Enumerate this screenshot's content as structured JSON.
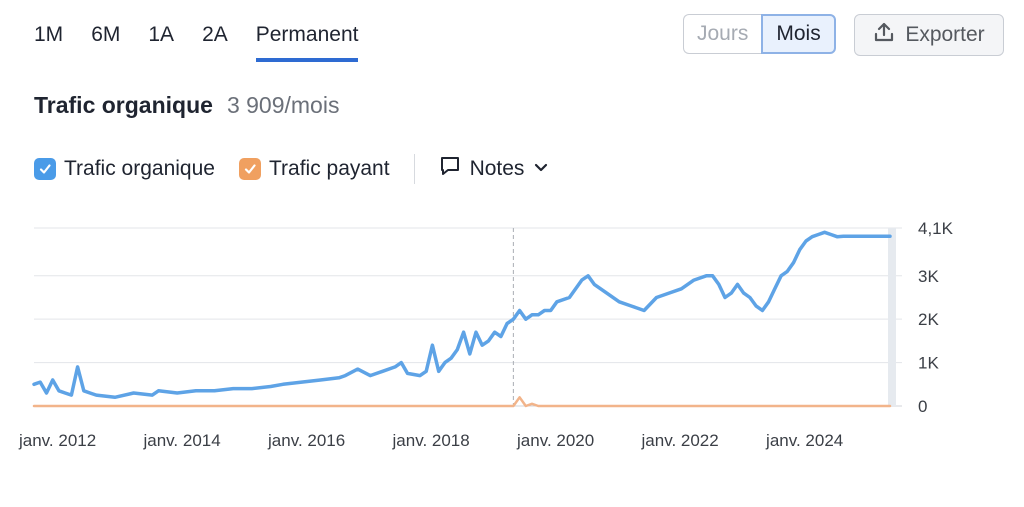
{
  "range_tabs": [
    {
      "label": "1M",
      "active": false
    },
    {
      "label": "6M",
      "active": false
    },
    {
      "label": "1A",
      "active": false
    },
    {
      "label": "2A",
      "active": false
    },
    {
      "label": "Permanent",
      "active": true
    }
  ],
  "period_toggle": {
    "left_label": "Jours",
    "right_label": "Mois",
    "selected": "Mois"
  },
  "export": {
    "label": "Exporter",
    "icon": "upload-icon"
  },
  "headline": {
    "title": "Trafic organique",
    "value": "3 909/mois"
  },
  "legend": {
    "items": [
      {
        "label": "Trafic organique",
        "checked": true,
        "color": "#4a9be8"
      },
      {
        "label": "Trafic payant",
        "checked": true,
        "color": "#f0a060"
      }
    ],
    "notes_label": "Notes"
  },
  "colors": {
    "organic": "#5ea3e6",
    "paid": "#f2b48a",
    "accent": "#2e6bd2"
  },
  "chart_data": {
    "type": "line",
    "title": "",
    "ylim": [
      0,
      4100
    ],
    "y_ticks": [
      {
        "value": 4100,
        "label": "4,1K"
      },
      {
        "value": 3000,
        "label": "3K"
      },
      {
        "value": 2000,
        "label": "2K"
      },
      {
        "value": 1000,
        "label": "1K"
      },
      {
        "value": 0,
        "label": "0"
      }
    ],
    "x_range": [
      2011.0,
      2024.75
    ],
    "x_ticks": [
      {
        "value": 2011.0,
        "label": "janv. 2012"
      },
      {
        "value": 2013.0,
        "label": "janv. 2014"
      },
      {
        "value": 2015.0,
        "label": "janv. 2016"
      },
      {
        "value": 2017.0,
        "label": "janv. 2018"
      },
      {
        "value": 2019.0,
        "label": "janv. 2020"
      },
      {
        "value": 2021.0,
        "label": "janv. 2022"
      },
      {
        "value": 2023.0,
        "label": "janv. 2024"
      }
    ],
    "marker_x": 2018.7,
    "grid": true,
    "series": [
      {
        "name": "Trafic organique",
        "x": [
          2011.0,
          2011.1,
          2011.2,
          2011.3,
          2011.4,
          2011.5,
          2011.6,
          2011.7,
          2011.8,
          2011.9,
          2012.0,
          2012.3,
          2012.6,
          2012.9,
          2013.0,
          2013.3,
          2013.6,
          2013.9,
          2014.2,
          2014.5,
          2014.8,
          2015.0,
          2015.3,
          2015.6,
          2015.9,
          2016.0,
          2016.2,
          2016.4,
          2016.6,
          2016.8,
          2016.9,
          2017.0,
          2017.2,
          2017.3,
          2017.4,
          2017.5,
          2017.6,
          2017.7,
          2017.8,
          2017.9,
          2018.0,
          2018.1,
          2018.2,
          2018.3,
          2018.4,
          2018.5,
          2018.6,
          2018.7,
          2018.8,
          2018.9,
          2019.0,
          2019.1,
          2019.2,
          2019.3,
          2019.4,
          2019.6,
          2019.8,
          2019.9,
          2020.0,
          2020.2,
          2020.4,
          2020.6,
          2020.8,
          2021.0,
          2021.2,
          2021.4,
          2021.6,
          2021.8,
          2021.9,
          2022.0,
          2022.1,
          2022.2,
          2022.3,
          2022.4,
          2022.5,
          2022.6,
          2022.7,
          2022.8,
          2022.9,
          2023.0,
          2023.1,
          2023.2,
          2023.3,
          2023.4,
          2023.5,
          2023.6,
          2023.7,
          2023.8,
          2023.9,
          2024.0,
          2024.1,
          2024.2,
          2024.4,
          2024.6,
          2024.75
        ],
        "values": [
          500,
          550,
          300,
          600,
          350,
          300,
          250,
          900,
          350,
          300,
          250,
          200,
          300,
          250,
          350,
          300,
          350,
          350,
          400,
          400,
          450,
          500,
          550,
          600,
          650,
          700,
          850,
          700,
          800,
          900,
          1000,
          750,
          700,
          800,
          1400,
          800,
          1000,
          1100,
          1300,
          1700,
          1200,
          1700,
          1400,
          1500,
          1700,
          1600,
          1900,
          2000,
          2200,
          2000,
          2100,
          2100,
          2200,
          2200,
          2400,
          2500,
          2900,
          3000,
          2800,
          2600,
          2400,
          2300,
          2200,
          2500,
          2600,
          2700,
          2900,
          3000,
          3000,
          2800,
          2500,
          2600,
          2800,
          2600,
          2500,
          2300,
          2200,
          2400,
          2700,
          3000,
          3100,
          3300,
          3600,
          3800,
          3900,
          3950,
          4000,
          3950,
          3900,
          3909,
          3909,
          3909,
          3909,
          3909,
          3909
        ],
        "color": "#5ea3e6"
      },
      {
        "name": "Trafic payant",
        "x": [
          2011.0,
          2018.7,
          2018.8,
          2018.9,
          2019.0,
          2019.1,
          2019.3,
          2024.75
        ],
        "values": [
          0,
          0,
          200,
          0,
          50,
          0,
          0,
          0
        ],
        "color": "#f2b48a"
      }
    ]
  }
}
